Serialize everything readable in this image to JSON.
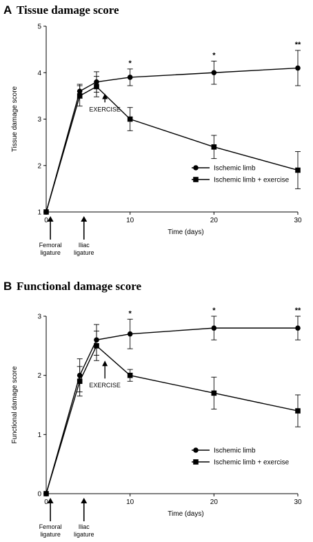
{
  "chart_data": [
    {
      "type": "line",
      "panel_letter": "A",
      "title": "Tissue damage score",
      "xlabel": "Time (days)",
      "ylabel": "Tissue damage score",
      "xlim": [
        0,
        30
      ],
      "ylim": [
        1,
        5
      ],
      "xticks": [
        0,
        10,
        20,
        30
      ],
      "yticks": [
        1,
        2,
        3,
        4,
        5
      ],
      "grid": false,
      "legend_position": "right, lower-middle",
      "series": [
        {
          "name": "Ischemic limb",
          "marker": "circle",
          "points": [
            {
              "x": 0,
              "y": 1.0,
              "err": 0
            },
            {
              "x": 4,
              "y": 3.6,
              "err": 0.15
            },
            {
              "x": 6,
              "y": 3.8,
              "err": 0.22
            },
            {
              "x": 10,
              "y": 3.9,
              "err": 0.18
            },
            {
              "x": 20,
              "y": 4.0,
              "err": 0.25
            },
            {
              "x": 30,
              "y": 4.1,
              "err": 0.38
            }
          ]
        },
        {
          "name": "Ischemic limb + exercise",
          "marker": "square",
          "points": [
            {
              "x": 0,
              "y": 1.0,
              "err": 0
            },
            {
              "x": 4,
              "y": 3.5,
              "err": 0.22
            },
            {
              "x": 6,
              "y": 3.7,
              "err": 0.22
            },
            {
              "x": 10,
              "y": 3.0,
              "err": 0.25
            },
            {
              "x": 20,
              "y": 2.4,
              "err": 0.25
            },
            {
              "x": 30,
              "y": 1.9,
              "err": 0.4
            }
          ]
        }
      ],
      "significance": [
        {
          "x": 10,
          "label": "*"
        },
        {
          "x": 20,
          "label": "*"
        },
        {
          "x": 30,
          "label": "**"
        }
      ],
      "exercise_annotation": {
        "x": 7,
        "label": "EXERCISE"
      },
      "bottom_annotations": [
        {
          "x": 0.5,
          "label_lines": [
            "Femoral",
            "ligature"
          ]
        },
        {
          "x": 4.5,
          "label_lines": [
            "Iliac",
            "ligature"
          ]
        }
      ]
    },
    {
      "type": "line",
      "panel_letter": "B",
      "title": "Functional damage score",
      "xlabel": "Time (days)",
      "ylabel": "Functional damage score",
      "xlim": [
        0,
        30
      ],
      "ylim": [
        0,
        3
      ],
      "xticks": [
        0,
        10,
        20,
        30
      ],
      "yticks": [
        0,
        1,
        2,
        3
      ],
      "grid": false,
      "legend_position": "right, lower-middle",
      "series": [
        {
          "name": "Ischemic limb",
          "marker": "circle",
          "points": [
            {
              "x": 0,
              "y": 0.0,
              "err": 0
            },
            {
              "x": 4,
              "y": 2.0,
              "err": 0.28
            },
            {
              "x": 6,
              "y": 2.6,
              "err": 0.26
            },
            {
              "x": 10,
              "y": 2.7,
              "err": 0.25
            },
            {
              "x": 20,
              "y": 2.8,
              "err": 0.2
            },
            {
              "x": 30,
              "y": 2.8,
              "err": 0.2
            }
          ]
        },
        {
          "name": "Ischemic limb + exercise",
          "marker": "square",
          "points": [
            {
              "x": 0,
              "y": 0.0,
              "err": 0
            },
            {
              "x": 4,
              "y": 1.9,
              "err": 0.25
            },
            {
              "x": 6,
              "y": 2.5,
              "err": 0.25
            },
            {
              "x": 10,
              "y": 2.0,
              "err": 0.1
            },
            {
              "x": 20,
              "y": 1.7,
              "err": 0.27
            },
            {
              "x": 30,
              "y": 1.4,
              "err": 0.27
            }
          ]
        }
      ],
      "significance": [
        {
          "x": 10,
          "label": "*"
        },
        {
          "x": 20,
          "label": "*"
        },
        {
          "x": 30,
          "label": "**"
        }
      ],
      "exercise_annotation": {
        "x": 7,
        "label": "EXERCISE"
      },
      "bottom_annotations": [
        {
          "x": 0.5,
          "label_lines": [
            "Femoral",
            "ligature"
          ]
        },
        {
          "x": 4.5,
          "label_lines": [
            "Iliac",
            "ligature"
          ]
        }
      ]
    }
  ]
}
